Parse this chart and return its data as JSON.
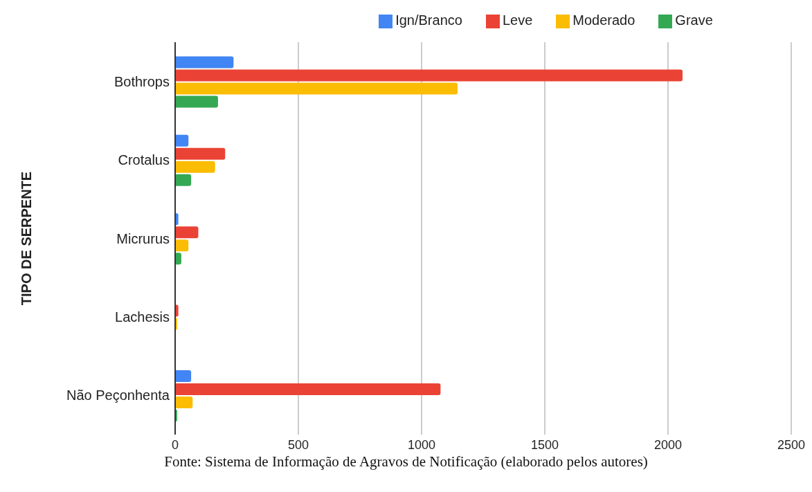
{
  "chart_data": {
    "type": "bar",
    "orientation": "horizontal",
    "ylabel": "TIPO DE SERPENTE",
    "categories": [
      "Bothrops",
      "Crotalus",
      "Micrurus",
      "Lachesis",
      "Não Peçonhenta"
    ],
    "series": [
      {
        "name": "Ign/Branco",
        "color": "#4285f4",
        "values": [
          237,
          54,
          13,
          0,
          65
        ]
      },
      {
        "name": "Leve",
        "color": "#ea4335",
        "values": [
          2059,
          203,
          94,
          13,
          1077
        ]
      },
      {
        "name": "Moderado",
        "color": "#fbbc04",
        "values": [
          1146,
          162,
          54,
          8,
          71
        ]
      },
      {
        "name": "Grave",
        "color": "#34a853",
        "values": [
          174,
          65,
          25,
          0,
          8
        ]
      }
    ],
    "xlim": [
      0,
      2500
    ],
    "xticks": [
      0,
      500,
      1000,
      1500,
      2000,
      2500
    ],
    "grid": "x",
    "legend": "top",
    "annotations": [
      "Fonte: Sistema de Informação de Agravos de Notificação (elaborado pelos autores)"
    ]
  }
}
